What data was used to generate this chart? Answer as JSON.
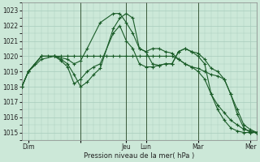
{
  "xlabel": "Pression niveau de la mer( hPa )",
  "background_color": "#cce8d8",
  "grid_color": "#a8ccbc",
  "line_color": "#1a5c28",
  "ylim": [
    1014.5,
    1023.5
  ],
  "yticks": [
    1015,
    1016,
    1017,
    1018,
    1019,
    1020,
    1021,
    1022,
    1023
  ],
  "xlim": [
    0,
    36
  ],
  "xtick_positions": [
    1,
    9,
    16,
    19,
    27,
    35
  ],
  "xtick_labels": [
    "Dim",
    "",
    "Jeu",
    "Lun",
    "Mar",
    "Mer"
  ],
  "vline_positions": [
    9,
    16,
    19,
    27
  ],
  "series1_x": [
    0,
    1,
    2,
    3,
    4,
    5,
    6,
    7,
    8,
    9,
    10,
    11,
    12,
    13,
    14,
    15,
    16,
    17,
    18,
    19,
    20,
    21,
    22,
    23,
    24,
    25,
    26,
    27,
    28,
    29,
    30,
    31,
    32,
    33,
    34,
    35,
    36
  ],
  "series1_y": [
    1018.0,
    1019.0,
    1019.5,
    1020.0,
    1020.0,
    1020.0,
    1020.0,
    1020.0,
    1020.0,
    1020.0,
    1020.0,
    1020.0,
    1020.0,
    1020.0,
    1020.0,
    1020.0,
    1020.0,
    1020.0,
    1020.0,
    1020.0,
    1020.0,
    1020.0,
    1020.0,
    1020.0,
    1019.8,
    1019.5,
    1019.3,
    1019.0,
    1018.5,
    1017.5,
    1016.5,
    1015.8,
    1015.3,
    1015.1,
    1015.0,
    1015.0,
    1015.0
  ],
  "series2_x": [
    0,
    1,
    3,
    5,
    7,
    8,
    9,
    10,
    12,
    14,
    15,
    16,
    17,
    18,
    19,
    20,
    21,
    22,
    23,
    24,
    25,
    26,
    27,
    28,
    29,
    30,
    31,
    32,
    33,
    34,
    35,
    36
  ],
  "series2_y": [
    1018.0,
    1019.0,
    1019.8,
    1020.0,
    1019.8,
    1019.5,
    1019.7,
    1020.5,
    1022.2,
    1022.8,
    1022.8,
    1022.2,
    1021.5,
    1020.5,
    1020.3,
    1020.5,
    1020.5,
    1020.3,
    1020.2,
    1019.8,
    1019.5,
    1019.3,
    1019.2,
    1019.0,
    1018.8,
    1018.7,
    1018.5,
    1017.5,
    1016.2,
    1015.3,
    1015.0,
    1015.0
  ],
  "series3_x": [
    0,
    1,
    3,
    5,
    6,
    7,
    8,
    9,
    10,
    11,
    12,
    14,
    15,
    16,
    17,
    18,
    19,
    20,
    21,
    22,
    23,
    24,
    25,
    26,
    27,
    28,
    29,
    30,
    31,
    32,
    33,
    34,
    35,
    36
  ],
  "series3_y": [
    1018.0,
    1019.0,
    1020.0,
    1020.0,
    1019.8,
    1019.5,
    1018.8,
    1018.0,
    1018.3,
    1018.8,
    1019.2,
    1021.8,
    1022.5,
    1022.8,
    1022.5,
    1020.5,
    1020.3,
    1019.5,
    1019.4,
    1019.5,
    1019.5,
    1020.3,
    1020.5,
    1020.3,
    1020.2,
    1019.8,
    1019.2,
    1019.0,
    1018.5,
    1017.5,
    1016.5,
    1015.5,
    1015.2,
    1015.0
  ],
  "series4_x": [
    0,
    1,
    3,
    5,
    6,
    7,
    8,
    9,
    10,
    11,
    12,
    14,
    15,
    16,
    17,
    18,
    19,
    20,
    21,
    22,
    23,
    24,
    25,
    26,
    27,
    28,
    29,
    30,
    31,
    32,
    33,
    34,
    35,
    36
  ],
  "series4_y": [
    1018.0,
    1019.0,
    1020.0,
    1020.0,
    1019.7,
    1019.3,
    1018.2,
    1018.5,
    1019.0,
    1019.3,
    1019.5,
    1021.5,
    1022.0,
    1021.0,
    1020.5,
    1019.5,
    1019.3,
    1019.3,
    1019.4,
    1019.5,
    1019.5,
    1020.3,
    1020.5,
    1020.3,
    1020.0,
    1019.5,
    1017.5,
    1016.8,
    1016.3,
    1015.8,
    1015.5,
    1015.2,
    1015.1,
    1015.0
  ]
}
